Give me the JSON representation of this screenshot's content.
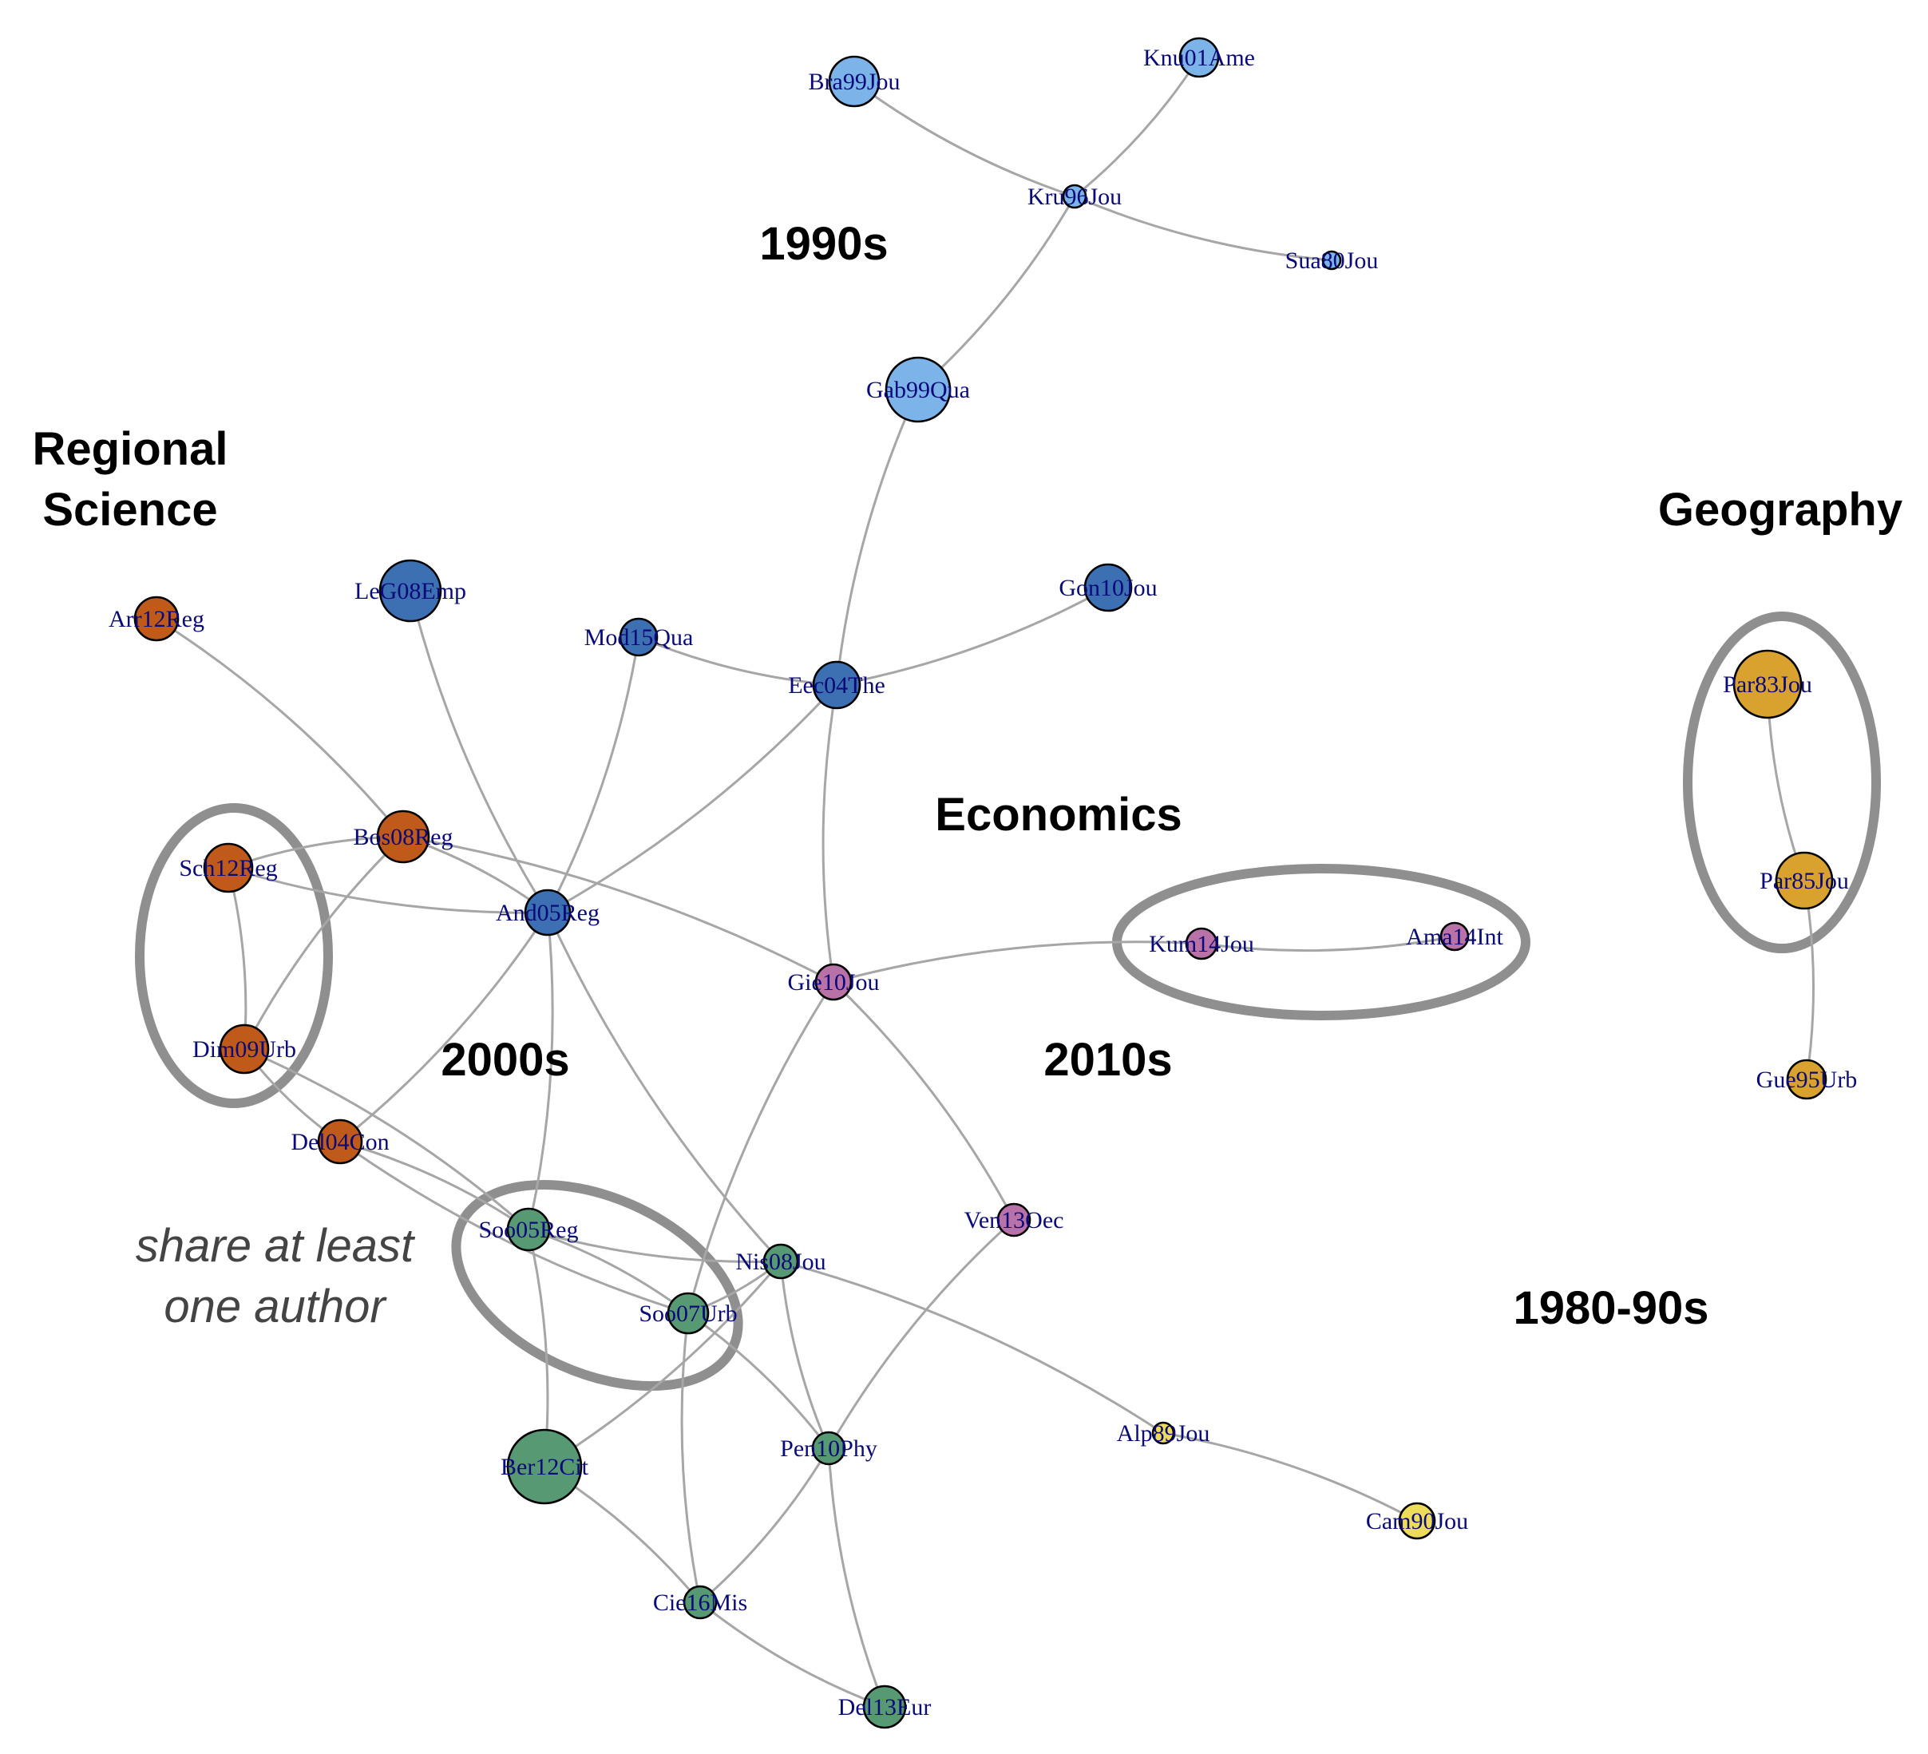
{
  "labels": {
    "section_1990s": "1990s",
    "regional_science_line1": "Regional",
    "regional_science_line2": "Science",
    "geography": "Geography",
    "economics": "Economics",
    "section_2000s": "2000s",
    "section_2010s": "2010s",
    "section_1980_90s": "1980-90s",
    "note_line1": "share at least",
    "note_line2": "one author"
  },
  "colors": {
    "light_blue": "#7cb4ea",
    "blue": "#3d6fb3",
    "orange": "#bf5a1a",
    "pink": "#b872a8",
    "green": "#579973",
    "yellow": "#eddb5a",
    "gold": "#d9a12d",
    "edge": "#a6a6a6",
    "highlight_ring": "#8f8f8f"
  },
  "nodes": [
    {
      "id": "Bra99Jou",
      "label": "Bra99Jou",
      "color": "light_blue"
    },
    {
      "id": "Knu01Ame",
      "label": "Knu01Ame",
      "color": "light_blue"
    },
    {
      "id": "Kru96Jou",
      "label": "Kru96Jou",
      "color": "light_blue"
    },
    {
      "id": "Sua80Jou",
      "label": "Sua80Jou",
      "color": "light_blue"
    },
    {
      "id": "Gab99Qua",
      "label": "Gab99Qua",
      "color": "light_blue"
    },
    {
      "id": "LeG08Emp",
      "label": "LeG08Emp",
      "color": "blue"
    },
    {
      "id": "Gon10Jou",
      "label": "Gon10Jou",
      "color": "blue"
    },
    {
      "id": "Mod15Qua",
      "label": "Mod15Qua",
      "color": "blue"
    },
    {
      "id": "Eec04The",
      "label": "Eec04The",
      "color": "blue"
    },
    {
      "id": "And05Reg",
      "label": "And05Reg",
      "color": "blue"
    },
    {
      "id": "Arr12Reg",
      "label": "Arr12Reg",
      "color": "orange"
    },
    {
      "id": "Bos08Reg",
      "label": "Bos08Reg",
      "color": "orange"
    },
    {
      "id": "Sch12Reg",
      "label": "Sch12Reg",
      "color": "orange"
    },
    {
      "id": "Dim09Urb",
      "label": "Dim09Urb",
      "color": "orange"
    },
    {
      "id": "Del04Con",
      "label": "Del04Con",
      "color": "orange"
    },
    {
      "id": "Gie10Jou",
      "label": "Gie10Jou",
      "color": "pink"
    },
    {
      "id": "Kum14Jou",
      "label": "Kum14Jou",
      "color": "pink"
    },
    {
      "id": "Ama14Int",
      "label": "Ama14Int",
      "color": "pink"
    },
    {
      "id": "Ven13Oec",
      "label": "Ven13Oec",
      "color": "pink"
    },
    {
      "id": "Soo05Reg",
      "label": "Soo05Reg",
      "color": "green"
    },
    {
      "id": "Soo07Urb",
      "label": "Soo07Urb",
      "color": "green"
    },
    {
      "id": "Nis08Jou",
      "label": "Nis08Jou",
      "color": "green"
    },
    {
      "id": "Pen10Phy",
      "label": "Pen10Phy",
      "color": "green"
    },
    {
      "id": "Ber12Cit",
      "label": "Ber12Cit",
      "color": "green"
    },
    {
      "id": "Cie16Mis",
      "label": "Cie16Mis",
      "color": "green"
    },
    {
      "id": "Del13Eur",
      "label": "Del13Eur",
      "color": "green"
    },
    {
      "id": "Alp89Jou",
      "label": "Alp89Jou",
      "color": "yellow"
    },
    {
      "id": "Cam90Jou",
      "label": "Cam90Jou",
      "color": "yellow"
    },
    {
      "id": "Par83Jou",
      "label": "Par83Jou",
      "color": "gold"
    },
    {
      "id": "Par85Jou",
      "label": "Par85Jou",
      "color": "gold"
    },
    {
      "id": "Gue95Urb",
      "label": "Gue95Urb",
      "color": "gold"
    }
  ],
  "edges": [
    [
      "Bra99Jou",
      "Kru96Jou"
    ],
    [
      "Knu01Ame",
      "Kru96Jou"
    ],
    [
      "Kru96Jou",
      "Sua80Jou"
    ],
    [
      "Kru96Jou",
      "Gab99Qua"
    ],
    [
      "Gab99Qua",
      "Eec04The"
    ],
    [
      "Gon10Jou",
      "Eec04The"
    ],
    [
      "Mod15Qua",
      "Eec04The"
    ],
    [
      "Eec04The",
      "And05Reg"
    ],
    [
      "Eec04The",
      "Gie10Jou"
    ],
    [
      "Mod15Qua",
      "And05Reg"
    ],
    [
      "LeG08Emp",
      "And05Reg"
    ],
    [
      "Arr12Reg",
      "Bos08Reg"
    ],
    [
      "Bos08Reg",
      "Sch12Reg"
    ],
    [
      "Bos08Reg",
      "And05Reg"
    ],
    [
      "Bos08Reg",
      "Dim09Urb"
    ],
    [
      "Bos08Reg",
      "Gie10Jou"
    ],
    [
      "Sch12Reg",
      "And05Reg"
    ],
    [
      "Sch12Reg",
      "Dim09Urb"
    ],
    [
      "Dim09Urb",
      "Del04Con"
    ],
    [
      "Dim09Urb",
      "Soo05Reg"
    ],
    [
      "Del04Con",
      "And05Reg"
    ],
    [
      "Del04Con",
      "Soo05Reg"
    ],
    [
      "Del04Con",
      "Soo07Urb"
    ],
    [
      "And05Reg",
      "Soo05Reg"
    ],
    [
      "And05Reg",
      "Nis08Jou"
    ],
    [
      "Gie10Jou",
      "Kum14Jou"
    ],
    [
      "Kum14Jou",
      "Ama14Int"
    ],
    [
      "Gie10Jou",
      "Ven13Oec"
    ],
    [
      "Gie10Jou",
      "Soo07Urb"
    ],
    [
      "Soo05Reg",
      "Soo07Urb"
    ],
    [
      "Soo05Reg",
      "Nis08Jou"
    ],
    [
      "Soo05Reg",
      "Ber12Cit"
    ],
    [
      "Soo07Urb",
      "Nis08Jou"
    ],
    [
      "Soo07Urb",
      "Pen10Phy"
    ],
    [
      "Soo07Urb",
      "Cie16Mis"
    ],
    [
      "Nis08Jou",
      "Ber12Cit"
    ],
    [
      "Nis08Jou",
      "Pen10Phy"
    ],
    [
      "Nis08Jou",
      "Alp89Jou"
    ],
    [
      "Ven13Oec",
      "Pen10Phy"
    ],
    [
      "Pen10Phy",
      "Cie16Mis"
    ],
    [
      "Pen10Phy",
      "Del13Eur"
    ],
    [
      "Ber12Cit",
      "Cie16Mis"
    ],
    [
      "Cie16Mis",
      "Del13Eur"
    ],
    [
      "Alp89Jou",
      "Cam90Jou"
    ],
    [
      "Par83Jou",
      "Par85Jou"
    ],
    [
      "Par85Jou",
      "Gue95Urb"
    ]
  ]
}
